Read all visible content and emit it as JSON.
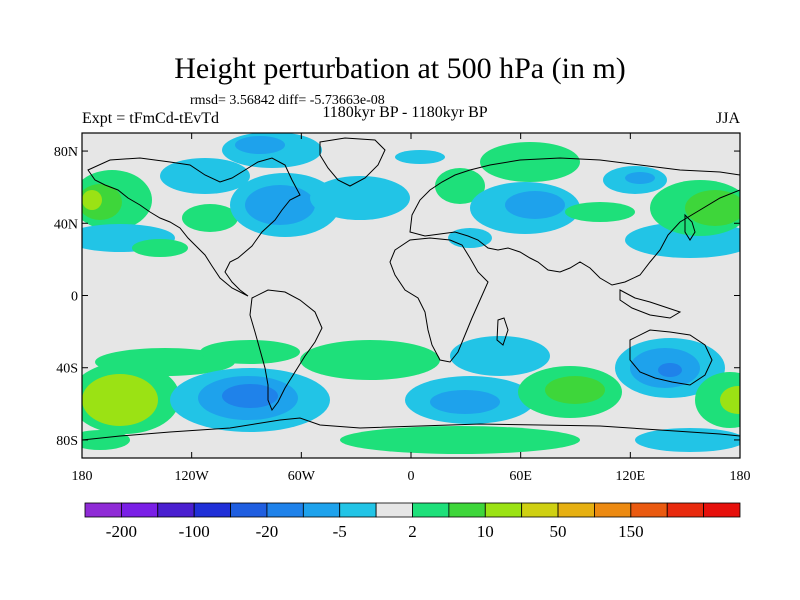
{
  "title": "Height perturbation at 500 hPa (in m)",
  "stats": "rmsd= 3.56842 diff= -5.73663e-08",
  "experiment": "Expt = tFmCd-tEvTd",
  "period": "1180kyr BP - 1180kyr BP",
  "season": "JJA",
  "lat_ticks": [
    {
      "label": "80N",
      "lat": 80
    },
    {
      "label": "40N",
      "lat": 40
    },
    {
      "label": "0",
      "lat": 0
    },
    {
      "label": "40S",
      "lat": -40
    },
    {
      "label": "80S",
      "lat": -80
    }
  ],
  "lon_ticks": [
    {
      "label": "180",
      "lon": -180
    },
    {
      "label": "120W",
      "lon": -120
    },
    {
      "label": "60W",
      "lon": -60
    },
    {
      "label": "0",
      "lon": 0
    },
    {
      "label": "60E",
      "lon": 60
    },
    {
      "label": "120E",
      "lon": 120
    },
    {
      "label": "180",
      "lon": 180
    }
  ],
  "colorbar": {
    "colors": [
      "#8f2bd6",
      "#7a1fe6",
      "#4a1fd0",
      "#2030d8",
      "#1f5ee0",
      "#1f82ea",
      "#1ea2ec",
      "#22c4e6",
      "#e6e6e6",
      "#1ee07a",
      "#3ed63a",
      "#9be214",
      "#cfd012",
      "#e6b012",
      "#ec8a12",
      "#ea5a10",
      "#e82a0e",
      "#e6100c"
    ],
    "labels": [
      {
        "text": "-200",
        "boundary": 1
      },
      {
        "text": "-100",
        "boundary": 3
      },
      {
        "text": "-20",
        "boundary": 5
      },
      {
        "text": "-5",
        "boundary": 7
      },
      {
        "text": "2",
        "boundary": 9
      },
      {
        "text": "10",
        "boundary": 11
      },
      {
        "text": "50",
        "boundary": 13
      },
      {
        "text": "150",
        "boundary": 15
      }
    ]
  }
}
